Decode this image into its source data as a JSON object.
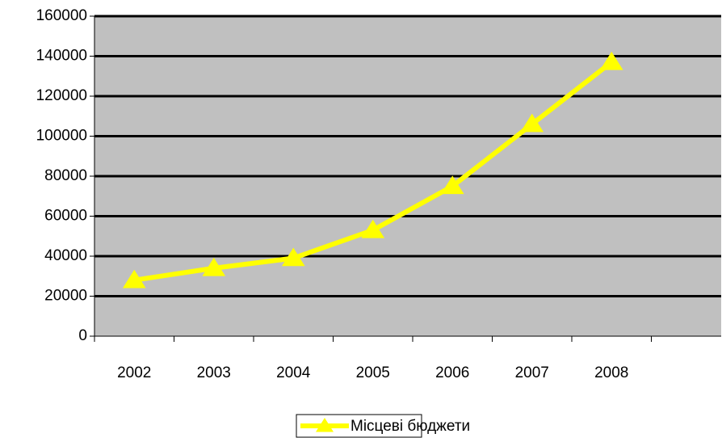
{
  "chart_data": {
    "type": "line",
    "categories": [
      "2002",
      "2003",
      "2004",
      "2005",
      "2006",
      "2007",
      "2008",
      null
    ],
    "series": [
      {
        "name": "Місцеві бюджети",
        "color": "#ffff00",
        "values": [
          28000,
          34000,
          39000,
          53000,
          75000,
          106000,
          137000,
          null
        ]
      }
    ],
    "ylim": [
      0,
      160000
    ],
    "yticks": [
      0,
      20000,
      40000,
      60000,
      80000,
      100000,
      120000,
      140000,
      160000
    ],
    "grid": true,
    "legend": "bottom",
    "plot_background": "#c0c0c0"
  }
}
